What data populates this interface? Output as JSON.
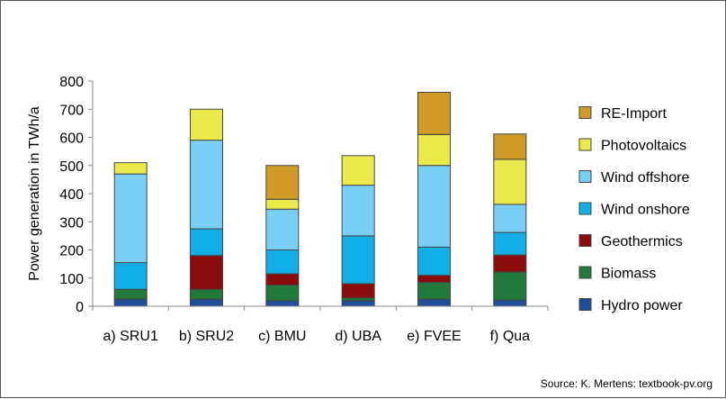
{
  "chart_data": {
    "type": "bar",
    "stacked": true,
    "ylabel": "Power generation in TWh/a",
    "ylim": [
      0,
      800
    ],
    "yticks": [
      0,
      100,
      200,
      300,
      400,
      500,
      600,
      700,
      800
    ],
    "grid": false,
    "legend_position": "right",
    "categories": [
      "a) SRU1",
      "b) SRU2",
      "c) BMU",
      "d) UBA",
      "e) FVEE",
      "f) Qua"
    ],
    "series": [
      {
        "name": "Hydro power",
        "color": "#1f4e9c",
        "values": [
          25,
          25,
          20,
          20,
          25,
          22
        ]
      },
      {
        "name": "Biomass",
        "color": "#217a3a",
        "values": [
          35,
          35,
          55,
          10,
          60,
          100
        ]
      },
      {
        "name": "Geothermics",
        "color": "#8b0a0a",
        "values": [
          0,
          120,
          40,
          50,
          25,
          60
        ]
      },
      {
        "name": "Wind onshore",
        "color": "#11aee8",
        "values": [
          95,
          95,
          85,
          170,
          100,
          80
        ]
      },
      {
        "name": "Wind offshore",
        "color": "#79d0f4",
        "values": [
          315,
          315,
          145,
          180,
          290,
          100
        ]
      },
      {
        "name": "Photovoltaics",
        "color": "#ecea4a",
        "values": [
          40,
          110,
          35,
          105,
          110,
          160
        ]
      },
      {
        "name": "RE-Import",
        "color": "#cf9b26",
        "values": [
          0,
          0,
          120,
          0,
          150,
          90
        ]
      }
    ]
  },
  "source_text": "Source: K. Mertens: textbook-pv.org"
}
